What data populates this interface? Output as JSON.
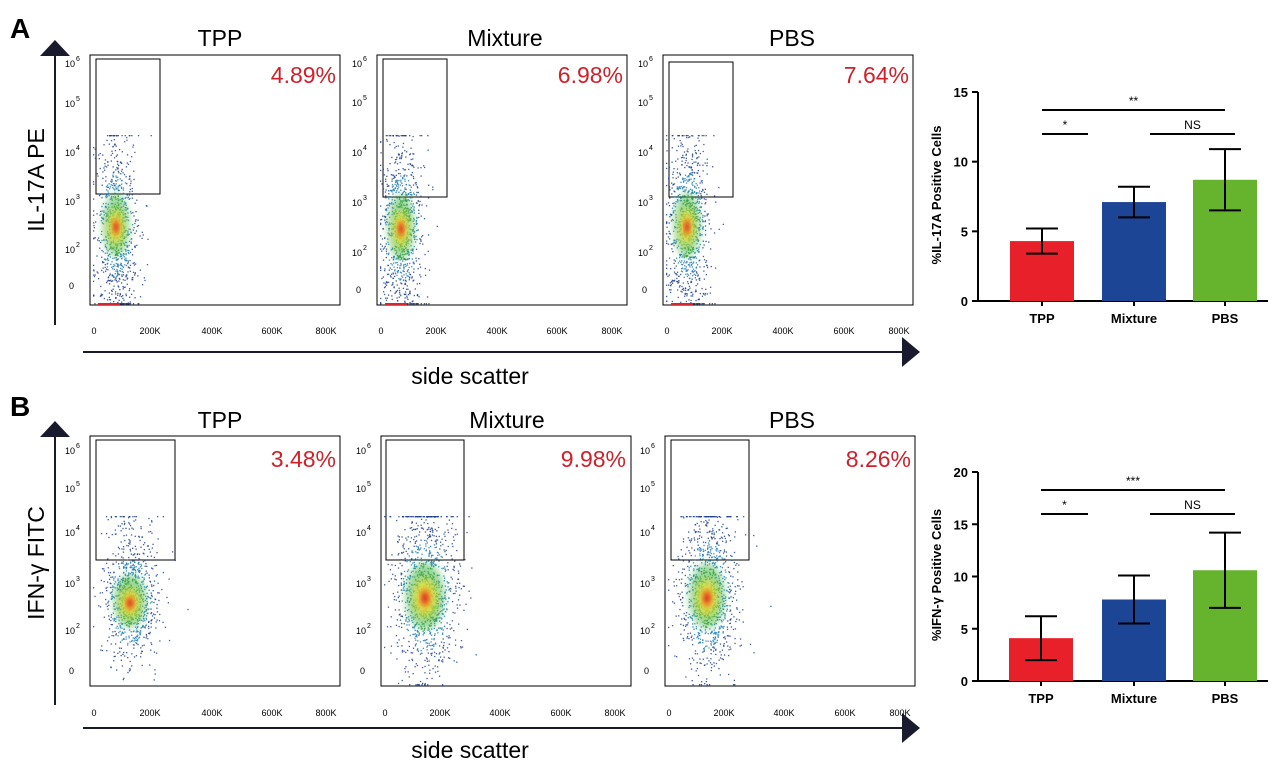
{
  "chart_data": [
    {
      "type": "scatter",
      "panel": "A",
      "ylabel": "IL-17A PE",
      "xlabel": "side scatter",
      "y_ticks": [
        "0",
        "10",
        "10",
        "10",
        "10",
        "10"
      ],
      "y_tick_exponents": [
        "",
        "2",
        "3",
        "4",
        "5",
        "6"
      ],
      "x_ticks": [
        "0",
        "200K",
        "400K",
        "600K",
        "800K"
      ],
      "plots": [
        {
          "title": "TPP",
          "gate_percent": "4.89%"
        },
        {
          "title": "Mixture",
          "gate_percent": "6.98%"
        },
        {
          "title": "PBS",
          "gate_percent": "7.64%"
        }
      ]
    },
    {
      "type": "bar",
      "panel": "A",
      "ylabel": "%IL-17A Positive Cells",
      "categories": [
        "TPP",
        "Mixture",
        "PBS"
      ],
      "values": [
        4.3,
        7.1,
        8.7
      ],
      "errors": [
        0.9,
        1.1,
        2.2
      ],
      "colors": [
        "#e8202a",
        "#1c4596",
        "#66b32e"
      ],
      "ylim": [
        0,
        15
      ],
      "yticks": [
        "0",
        "5",
        "10",
        "15"
      ],
      "ytick_values": [
        0,
        5,
        10,
        15
      ],
      "significance": [
        {
          "from": 0,
          "to": 1,
          "label": "*"
        },
        {
          "from": 1,
          "to": 2,
          "label": "NS"
        },
        {
          "from": 0,
          "to": 2,
          "label": "**"
        }
      ]
    },
    {
      "type": "scatter",
      "panel": "B",
      "ylabel": "IFN-γ FITC",
      "xlabel": "side scatter",
      "y_ticks": [
        "0",
        "10",
        "10",
        "10",
        "10",
        "10"
      ],
      "y_tick_exponents": [
        "",
        "2",
        "3",
        "4",
        "5",
        "6"
      ],
      "x_ticks": [
        "0",
        "200K",
        "400K",
        "600K",
        "800K"
      ],
      "plots": [
        {
          "title": "TPP",
          "gate_percent": "3.48%"
        },
        {
          "title": "Mixture",
          "gate_percent": "9.98%"
        },
        {
          "title": "PBS",
          "gate_percent": "8.26%"
        }
      ]
    },
    {
      "type": "bar",
      "panel": "B",
      "ylabel": "%IFN-γ Positive Cells",
      "categories": [
        "TPP",
        "Mixture",
        "PBS"
      ],
      "values": [
        4.1,
        7.8,
        10.6
      ],
      "errors": [
        2.1,
        2.3,
        3.6
      ],
      "colors": [
        "#e8202a",
        "#1c4596",
        "#66b32e"
      ],
      "ylim": [
        0,
        20
      ],
      "yticks": [
        "0",
        "5",
        "10",
        "15",
        "20"
      ],
      "ytick_values": [
        0,
        5,
        10,
        15,
        20
      ],
      "significance": [
        {
          "from": 0,
          "to": 1,
          "label": "*"
        },
        {
          "from": 1,
          "to": 2,
          "label": "NS"
        },
        {
          "from": 0,
          "to": 2,
          "label": "***"
        }
      ]
    }
  ]
}
